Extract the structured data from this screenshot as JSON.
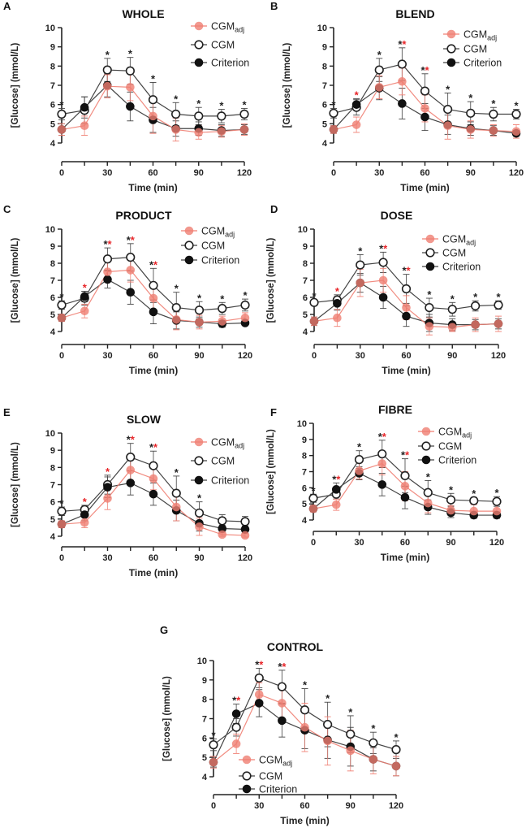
{
  "chart_data": [
    {
      "type": "line",
      "letter": "A",
      "title": "WHOLE",
      "xlabel": "Time (min)",
      "ylabel": "[Glucose] (mmol/L)",
      "x": [
        0,
        15,
        30,
        45,
        60,
        75,
        90,
        105,
        120
      ],
      "xticks": [
        "0",
        "30",
        "60",
        "90",
        "120"
      ],
      "yticks": [
        "4",
        "5",
        "6",
        "7",
        "8",
        "9",
        "10"
      ],
      "ylim": [
        4,
        10
      ],
      "legend_position": "top-right",
      "series": [
        {
          "name": "CGM",
          "sub": "adj",
          "values": [
            4.7,
            4.9,
            6.95,
            6.9,
            5.4,
            4.7,
            4.55,
            4.6,
            4.7
          ],
          "sd": [
            0.3,
            0.5,
            0.6,
            0.7,
            0.9,
            0.6,
            0.35,
            0.3,
            0.3
          ]
        },
        {
          "name": "CGM",
          "values": [
            5.5,
            5.7,
            7.8,
            7.75,
            6.25,
            5.5,
            5.4,
            5.4,
            5.5
          ],
          "sd": [
            0.3,
            0.7,
            0.6,
            0.7,
            0.9,
            0.6,
            0.45,
            0.35,
            0.3
          ]
        },
        {
          "name": "Criterion",
          "values": [
            4.7,
            5.85,
            7.0,
            5.9,
            5.2,
            4.75,
            4.75,
            4.65,
            4.7
          ],
          "sd": [
            0.3,
            0.55,
            0.6,
            0.75,
            0.65,
            0.4,
            0.35,
            0.3,
            0.25
          ]
        }
      ],
      "significance": [
        "b",
        "",
        "b",
        "b",
        "b",
        "b",
        "b",
        "b",
        "b"
      ]
    },
    {
      "type": "line",
      "letter": "B",
      "title": "BLEND",
      "xlabel": "Time (min)",
      "ylabel": "[Glucose] (mmol/L)",
      "x": [
        0,
        15,
        30,
        45,
        60,
        75,
        90,
        105,
        120
      ],
      "xticks": [
        "0",
        "30",
        "60",
        "90",
        "120"
      ],
      "yticks": [
        "4",
        "5",
        "6",
        "7",
        "8",
        "9",
        "10"
      ],
      "ylim": [
        4,
        10
      ],
      "legend_position": "top-right",
      "series": [
        {
          "name": "CGM",
          "sub": "adj",
          "values": [
            4.7,
            4.95,
            6.9,
            7.2,
            5.8,
            4.9,
            4.7,
            4.65,
            4.6
          ],
          "sd": [
            0.2,
            0.4,
            0.6,
            0.7,
            0.7,
            0.7,
            0.45,
            0.3,
            0.35
          ]
        },
        {
          "name": "CGM",
          "values": [
            5.55,
            5.85,
            7.8,
            8.1,
            6.7,
            5.75,
            5.55,
            5.5,
            5.5
          ],
          "sd": [
            0.25,
            0.4,
            0.6,
            0.85,
            0.9,
            0.85,
            0.6,
            0.35,
            0.25
          ]
        },
        {
          "name": "Criterion",
          "values": [
            4.7,
            6.0,
            6.85,
            6.05,
            5.35,
            4.95,
            4.75,
            4.65,
            4.5
          ],
          "sd": [
            0.2,
            0.3,
            0.6,
            0.8,
            0.7,
            0.5,
            0.35,
            0.25,
            0.15
          ]
        }
      ],
      "significance": [
        "b",
        "r",
        "b",
        "br",
        "br",
        "b",
        "b",
        "b",
        "b"
      ]
    },
    {
      "type": "line",
      "letter": "C",
      "title": "PRODUCT",
      "xlabel": "Time (min)",
      "ylabel": "[Glucose] (mmol/L)",
      "x": [
        0,
        15,
        30,
        45,
        60,
        75,
        90,
        105,
        120
      ],
      "xticks": [
        "0",
        "30",
        "60",
        "90",
        "120"
      ],
      "yticks": [
        "4",
        "5",
        "6",
        "7",
        "8",
        "9",
        "10"
      ],
      "ylim": [
        4,
        10
      ],
      "legend_position": "top-right",
      "series": [
        {
          "name": "CGM",
          "sub": "adj",
          "values": [
            4.8,
            5.2,
            7.5,
            7.6,
            5.95,
            4.7,
            4.55,
            4.6,
            4.8
          ],
          "sd": [
            0.2,
            0.4,
            0.6,
            0.7,
            0.9,
            0.6,
            0.4,
            0.3,
            0.3
          ]
        },
        {
          "name": "CGM",
          "values": [
            5.55,
            5.95,
            8.25,
            8.35,
            6.7,
            5.4,
            5.25,
            5.35,
            5.55
          ],
          "sd": [
            0.25,
            0.4,
            0.65,
            0.8,
            1.0,
            0.9,
            0.5,
            0.35,
            0.35
          ]
        },
        {
          "name": "Criterion",
          "values": [
            4.8,
            6.05,
            7.05,
            6.3,
            5.15,
            4.65,
            4.55,
            4.45,
            4.5
          ],
          "sd": [
            0.2,
            0.3,
            0.5,
            0.7,
            0.7,
            0.5,
            0.3,
            0.2,
            0.15
          ]
        }
      ],
      "significance": [
        "b",
        "r",
        "br",
        "br",
        "br",
        "b",
        "b",
        "b",
        "b"
      ]
    },
    {
      "type": "line",
      "letter": "D",
      "title": "DOSE",
      "xlabel": "Time (min)",
      "ylabel": "[Glucose] (mmol/L)",
      "x": [
        0,
        15,
        30,
        45,
        60,
        75,
        90,
        105,
        120
      ],
      "xticks": [
        "0",
        "30",
        "60",
        "90",
        "120"
      ],
      "yticks": [
        "4",
        "5",
        "6",
        "7",
        "8",
        "9",
        "10"
      ],
      "ylim": [
        4,
        10
      ],
      "legend_position": "top-right",
      "series": [
        {
          "name": "CGM",
          "sub": "adj",
          "values": [
            4.6,
            4.8,
            6.85,
            7.0,
            5.4,
            4.3,
            4.25,
            4.4,
            4.45
          ],
          "sd": [
            0.25,
            0.5,
            0.8,
            0.7,
            0.7,
            0.5,
            0.25,
            0.4,
            0.45
          ]
        },
        {
          "name": "CGM",
          "values": [
            5.7,
            5.85,
            7.9,
            8.05,
            6.5,
            5.4,
            5.3,
            5.5,
            5.55
          ],
          "sd": [
            0.15,
            0.3,
            0.6,
            0.6,
            0.85,
            0.55,
            0.4,
            0.3,
            0.25
          ]
        },
        {
          "name": "Criterion",
          "values": [
            4.6,
            5.65,
            6.85,
            6.0,
            4.9,
            4.5,
            4.4,
            4.4,
            4.45
          ],
          "sd": [
            0.25,
            0.4,
            0.55,
            0.65,
            0.6,
            0.5,
            0.35,
            0.3,
            0.3
          ]
        }
      ],
      "significance": [
        "b",
        "r",
        "b",
        "br",
        "br",
        "b",
        "b",
        "b",
        "b"
      ]
    },
    {
      "type": "line",
      "letter": "E",
      "title": "SLOW",
      "xlabel": "Time (min)",
      "ylabel": "[Glucose] (mmol/L)",
      "x": [
        0,
        15,
        30,
        45,
        60,
        75,
        90,
        105,
        120
      ],
      "xticks": [
        "0",
        "30",
        "60",
        "90",
        "120"
      ],
      "yticks": [
        "4",
        "5",
        "6",
        "7",
        "8",
        "9",
        "10"
      ],
      "ylim": [
        4,
        10
      ],
      "legend_position": "top-right",
      "series": [
        {
          "name": "CGM",
          "sub": "adj",
          "values": [
            4.7,
            4.8,
            6.2,
            7.85,
            7.35,
            5.7,
            4.55,
            4.1,
            4.05
          ],
          "sd": [
            0.2,
            0.3,
            0.65,
            0.6,
            0.65,
            0.8,
            0.5,
            0.1,
            0.1
          ]
        },
        {
          "name": "CGM",
          "values": [
            5.45,
            5.55,
            7.0,
            8.6,
            8.1,
            6.5,
            5.35,
            4.9,
            4.85
          ],
          "sd": [
            0.25,
            0.25,
            0.55,
            0.8,
            0.85,
            1.0,
            0.65,
            0.35,
            0.3
          ]
        },
        {
          "name": "Criterion",
          "values": [
            4.7,
            5.25,
            6.85,
            7.1,
            6.45,
            5.5,
            4.75,
            4.45,
            4.4
          ],
          "sd": [
            0.2,
            0.35,
            0.6,
            0.7,
            0.65,
            0.6,
            0.45,
            0.2,
            0.2
          ]
        }
      ],
      "significance": [
        "b",
        "r",
        "r",
        "br",
        "br",
        "b",
        "b",
        "",
        ""
      ]
    },
    {
      "type": "line",
      "letter": "F",
      "title": "FIBRE",
      "xlabel": "Time (min)",
      "ylabel": "[Glucose] (mmol/L)",
      "x": [
        0,
        15,
        30,
        45,
        60,
        75,
        90,
        105,
        120
      ],
      "xticks": [
        "0",
        "30",
        "60",
        "90",
        "120"
      ],
      "yticks": [
        "4",
        "5",
        "6",
        "7",
        "8",
        "9",
        "10"
      ],
      "ylim": [
        4,
        10
      ],
      "legend_position": "top-right",
      "series": [
        {
          "name": "CGM",
          "sub": "adj",
          "values": [
            4.7,
            4.95,
            7.05,
            7.5,
            6.1,
            5.05,
            4.6,
            4.55,
            4.55
          ],
          "sd": [
            0.2,
            0.35,
            0.5,
            0.7,
            0.9,
            0.6,
            0.3,
            0.4,
            0.4
          ]
        },
        {
          "name": "CGM",
          "values": [
            5.35,
            5.6,
            7.75,
            8.1,
            6.75,
            5.7,
            5.25,
            5.2,
            5.15
          ],
          "sd": [
            0.25,
            0.3,
            0.55,
            0.85,
            1.05,
            0.75,
            0.4,
            0.2,
            0.3
          ]
        },
        {
          "name": "Criterion",
          "values": [
            4.7,
            5.9,
            6.9,
            6.2,
            5.4,
            4.8,
            4.45,
            4.3,
            4.3
          ],
          "sd": [
            0.2,
            0.4,
            0.4,
            0.7,
            0.7,
            0.45,
            0.3,
            0.2,
            0.2
          ]
        }
      ],
      "significance": [
        "b",
        "br",
        "b",
        "br",
        "br",
        "b",
        "b",
        "b",
        "b"
      ]
    },
    {
      "type": "line",
      "letter": "G",
      "title": "CONTROL",
      "xlabel": "Time (min)",
      "ylabel": "[Glucose] (mmol/L)",
      "x": [
        0,
        15,
        30,
        45,
        60,
        75,
        90,
        105,
        120
      ],
      "xticks": [
        "0",
        "30",
        "60",
        "90",
        "120"
      ],
      "yticks": [
        "4",
        "5",
        "6",
        "7",
        "8",
        "9",
        "10"
      ],
      "ylim": [
        4,
        10
      ],
      "legend_position": "bottom-left",
      "series": [
        {
          "name": "CGM",
          "sub": "adj",
          "values": [
            4.75,
            5.7,
            8.25,
            7.8,
            6.55,
            5.85,
            5.35,
            4.9,
            4.55
          ],
          "sd": [
            0.3,
            0.5,
            0.6,
            0.9,
            1.25,
            1.25,
            1.05,
            0.75,
            0.5
          ]
        },
        {
          "name": "CGM",
          "values": [
            5.65,
            6.55,
            9.1,
            8.65,
            7.45,
            6.7,
            6.2,
            5.75,
            5.4
          ],
          "sd": [
            0.3,
            0.45,
            0.5,
            0.85,
            1.1,
            1.15,
            0.95,
            0.55,
            0.45
          ]
        },
        {
          "name": "Criterion",
          "values": [
            4.75,
            7.25,
            7.8,
            6.9,
            6.4,
            5.9,
            5.55,
            4.9,
            4.55
          ],
          "sd": [
            0.25,
            0.5,
            0.7,
            0.85,
            0.95,
            0.95,
            1.0,
            0.6,
            0.5
          ]
        }
      ],
      "significance": [
        "b",
        "br",
        "br",
        "br",
        "b",
        "b",
        "b",
        "b",
        "b"
      ]
    }
  ],
  "colors": {
    "cgm_adj": "#f07f73",
    "cgm": "#222222",
    "criterion": "#111111",
    "star_black": "#222222",
    "star_red": "#e8262a"
  }
}
